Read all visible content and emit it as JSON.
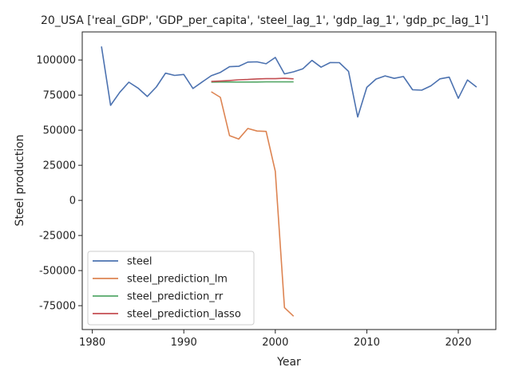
{
  "chart_data": {
    "type": "line",
    "title": "20_USA ['real_GDP', 'GDP_per_capita', 'steel_lag_1', 'gdp_lag_1', 'gdp_pc_lag_1']",
    "xlabel": "Year",
    "ylabel": "Steel production",
    "xlim": [
      1978.9,
      2024.1
    ],
    "ylim": [
      -92000,
      120000
    ],
    "xticks": [
      1980,
      1990,
      2000,
      2010,
      2020
    ],
    "yticks": [
      -75000,
      -50000,
      -25000,
      0,
      25000,
      50000,
      75000,
      100000
    ],
    "grid": false,
    "legend_position": "lower-left",
    "series": [
      {
        "name": "steel",
        "color": "#4c72b0",
        "x": [
          1981,
          1982,
          1983,
          1984,
          1985,
          1986,
          1987,
          1988,
          1989,
          1990,
          1991,
          1992,
          1993,
          1994,
          1995,
          1996,
          1997,
          1998,
          1999,
          2000,
          2001,
          2002,
          2003,
          2004,
          2005,
          2006,
          2007,
          2008,
          2009,
          2010,
          2011,
          2012,
          2013,
          2014,
          2015,
          2016,
          2017,
          2018,
          2019,
          2020,
          2021,
          2022
        ],
        "y": [
          109600,
          67700,
          77000,
          84200,
          80000,
          74000,
          80800,
          90600,
          89000,
          89700,
          79700,
          84300,
          88800,
          91200,
          95200,
          95500,
          98500,
          98700,
          97300,
          101800,
          90100,
          91600,
          93700,
          99700,
          94900,
          98200,
          98100,
          91900,
          59400,
          80500,
          86400,
          88700,
          86900,
          88200,
          78800,
          78500,
          81600,
          86600,
          87800,
          72700,
          85800,
          80700
        ]
      },
      {
        "name": "steel_prediction_lm",
        "color": "#dd8452",
        "x": [
          1993,
          1994,
          1995,
          1996,
          1997,
          1998,
          1999,
          2000,
          2001,
          2002
        ],
        "y": [
          77400,
          73400,
          46100,
          43700,
          51200,
          49400,
          49100,
          20700,
          -76400,
          -82500
        ]
      },
      {
        "name": "steel_prediction_rr",
        "color": "#55a868",
        "x": [
          1993,
          1994,
          1995,
          1996,
          1997,
          1998,
          1999,
          2000,
          2001,
          2002
        ],
        "y": [
          84200,
          84300,
          84300,
          84300,
          84300,
          84300,
          84400,
          84400,
          84400,
          84400
        ]
      },
      {
        "name": "steel_prediction_lasso",
        "color": "#c44e52",
        "x": [
          1993,
          1994,
          1995,
          1996,
          1997,
          1998,
          1999,
          2000,
          2001,
          2002
        ],
        "y": [
          84700,
          85000,
          85400,
          85900,
          86100,
          86500,
          86700,
          86700,
          87000,
          86600
        ]
      }
    ]
  }
}
